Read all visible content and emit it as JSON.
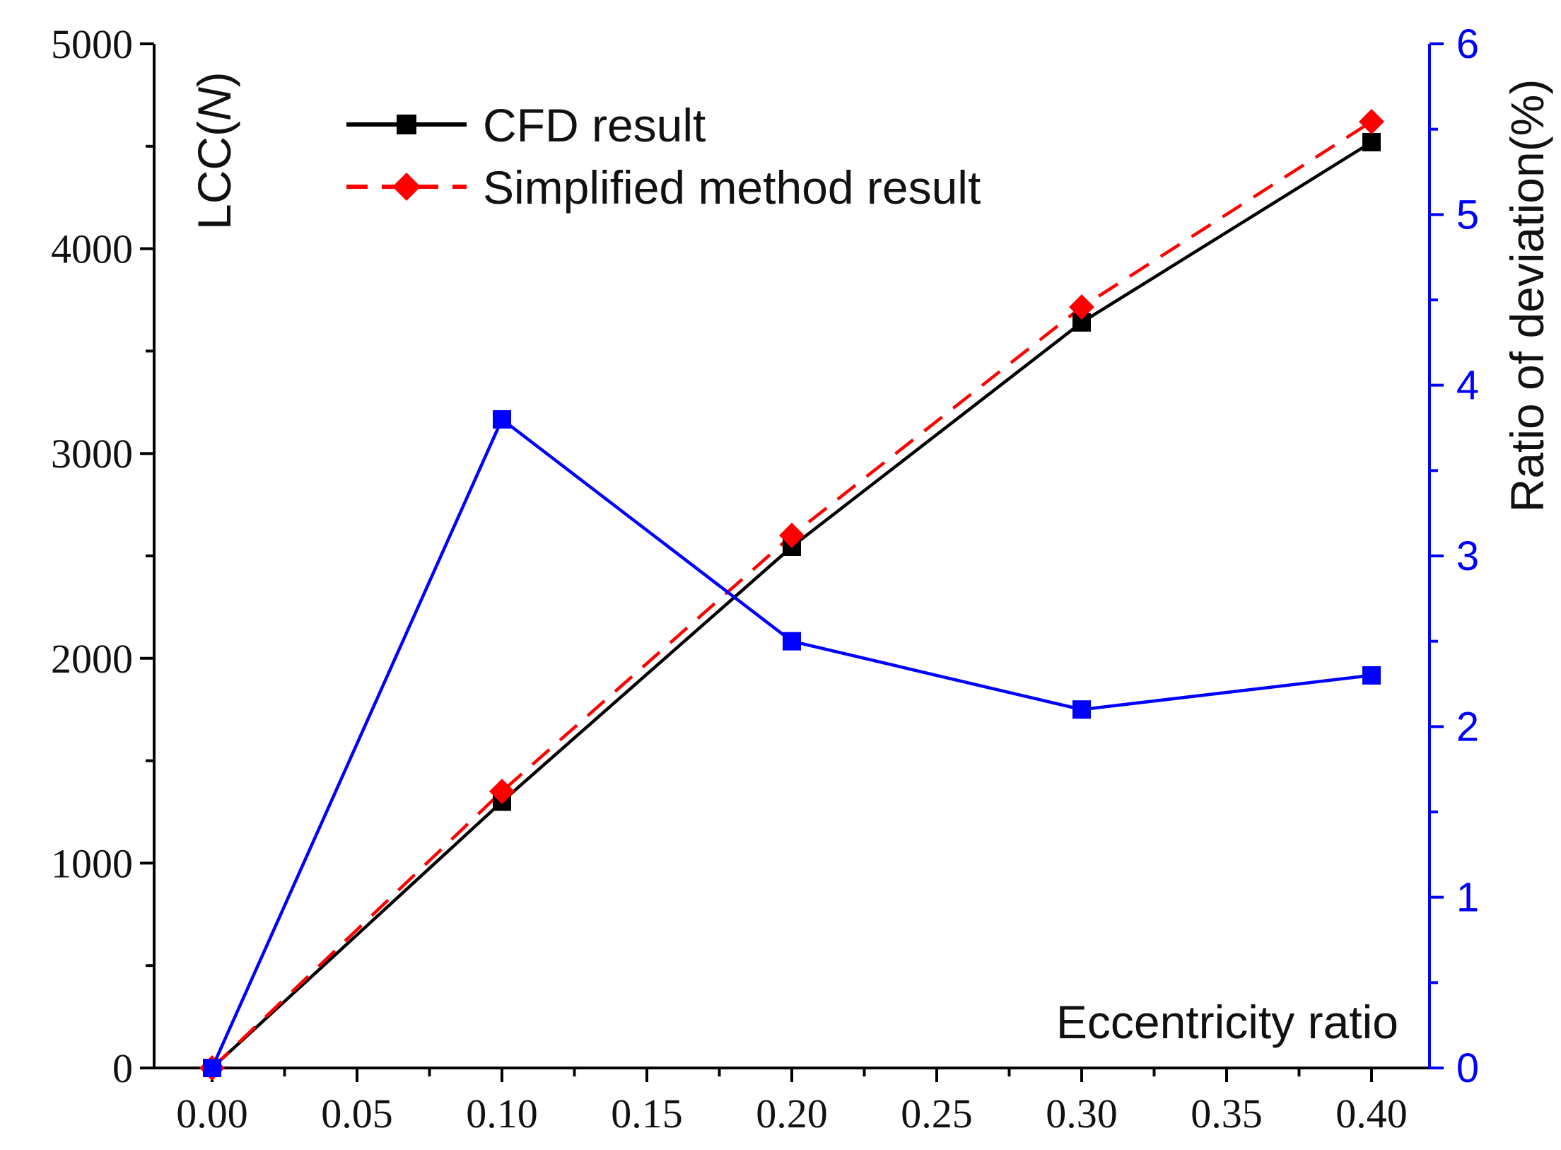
{
  "chart_data": {
    "type": "line",
    "title": "",
    "xlabel": "Eccentricity ratio",
    "ylabel_left": "LCC(N)",
    "ylabel_left_prefix": "LCC(",
    "ylabel_left_italic": "N",
    "ylabel_left_suffix": ")",
    "ylabel_right": "Ratio of deviation(%)",
    "x": [
      0.0,
      0.1,
      0.2,
      0.3,
      0.4
    ],
    "xlim": [
      -0.02,
      0.42
    ],
    "ylim_left": [
      0,
      5000
    ],
    "ylim_right": [
      0,
      6
    ],
    "x_tick_labels": [
      "0.00",
      "0.05",
      "0.10",
      "0.15",
      "0.20",
      "0.25",
      "0.30",
      "0.35",
      "0.40"
    ],
    "left_tick_labels": [
      "0",
      "1000",
      "2000",
      "3000",
      "4000",
      "5000"
    ],
    "right_tick_labels": [
      "0",
      "1",
      "2",
      "3",
      "4",
      "5",
      "6"
    ],
    "series": [
      {
        "name": "CFD result",
        "axis": "left",
        "color": "#000000",
        "marker": "square",
        "dash": "solid",
        "values": [
          0,
          1300,
          2545,
          3640,
          4520
        ]
      },
      {
        "name": "Simplified method result",
        "axis": "left",
        "color": "#ff0000",
        "marker": "diamond",
        "dash": "dashed",
        "values": [
          0,
          1350,
          2600,
          3715,
          4620
        ]
      },
      {
        "name": "Ratio of deviation",
        "axis": "right",
        "color": "#0000ff",
        "marker": "square",
        "dash": "solid",
        "values": [
          0,
          3.8,
          2.5,
          2.1,
          2.3
        ]
      }
    ],
    "legend": {
      "placement": "top-left",
      "entries": [
        "CFD result",
        "Simplified method result"
      ]
    }
  },
  "colors": {
    "axis_left": "#000000",
    "axis_right": "#0000ff"
  }
}
